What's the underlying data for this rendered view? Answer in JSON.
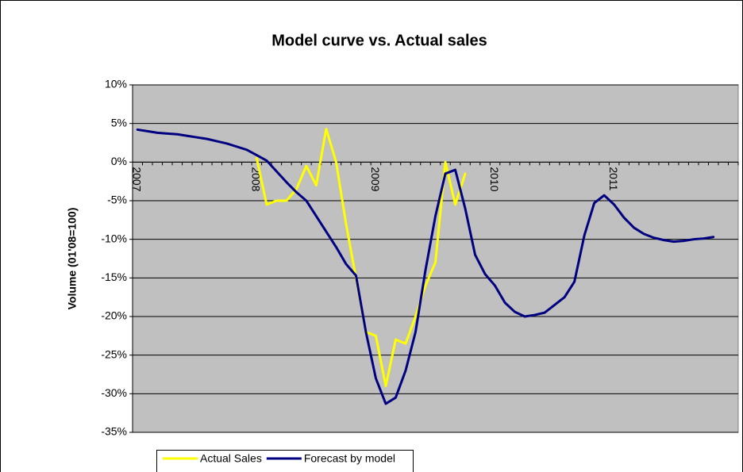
{
  "chart_data": {
    "type": "line",
    "title": "Model curve vs. Actual sales",
    "y_label": "Volume (01'08=100)",
    "categories": [
      "2007",
      null,
      null,
      null,
      null,
      null,
      null,
      null,
      null,
      null,
      null,
      null,
      "2008",
      null,
      null,
      null,
      null,
      null,
      null,
      null,
      null,
      null,
      null,
      null,
      "2009",
      null,
      null,
      null,
      null,
      null,
      null,
      null,
      null,
      null,
      null,
      null,
      "2010",
      null,
      null,
      null,
      null,
      null,
      null,
      null,
      null,
      null,
      null,
      null,
      "2011",
      null,
      null,
      null,
      null,
      null,
      null,
      null,
      null,
      null,
      null,
      null,
      null
    ],
    "series": [
      {
        "name": "Actual Sales",
        "color": "#ffff00",
        "values": [
          null,
          null,
          null,
          null,
          null,
          null,
          null,
          null,
          null,
          null,
          null,
          null,
          0.5,
          -5.5,
          -5,
          -5,
          -3.5,
          -0.5,
          -3,
          4.3,
          0,
          -8,
          -15,
          -22,
          -22.5,
          -29,
          -23,
          -23.5,
          -20,
          -16,
          -13,
          0,
          -5.5,
          -1.5,
          null,
          null,
          null,
          null,
          null,
          null,
          null,
          null,
          null,
          null,
          null,
          null,
          null,
          null,
          null,
          null,
          null,
          null,
          null,
          null,
          null,
          null,
          null,
          null,
          null,
          null,
          null
        ]
      },
      {
        "name": "Forecast by model",
        "color": "#000080",
        "values": [
          4.2,
          4.0,
          3.8,
          3.7,
          3.6,
          3.4,
          3.2,
          3.0,
          2.7,
          2.4,
          2.0,
          1.6,
          0.9,
          0.2,
          -1.2,
          -2.6,
          -3.9,
          -5.0,
          -7.0,
          -9.0,
          -11.0,
          -13.2,
          -14.7,
          -22,
          -28,
          -31.3,
          -30.5,
          -27,
          -22,
          -14,
          -7,
          -1.5,
          -1,
          -6,
          -12,
          -14.5,
          -16,
          -18.2,
          -19.4,
          -20,
          -19.8,
          -19.5,
          -18.5,
          -17.5,
          -15.5,
          -9.5,
          -5.3,
          -4.3,
          -5.5,
          -7.2,
          -8.5,
          -9.3,
          -9.8,
          -10.1,
          -10.3,
          -10.2,
          -10,
          -9.9,
          -9.7,
          null,
          null
        ]
      }
    ],
    "ylim": [
      -35,
      10
    ],
    "yticks": [
      {
        "value": -35,
        "label": "-35%"
      },
      {
        "value": -30,
        "label": "-30%"
      },
      {
        "value": -25,
        "label": "-25%"
      },
      {
        "value": -20,
        "label": "-20%"
      },
      {
        "value": -15,
        "label": "-15%"
      },
      {
        "value": -10,
        "label": "-10%"
      },
      {
        "value": -5,
        "label": "-5%"
      },
      {
        "value": 0,
        "label": "0%"
      },
      {
        "value": 5,
        "label": "5%"
      },
      {
        "value": 10,
        "label": "10%"
      }
    ],
    "grid": true,
    "legend": "bottom-left",
    "background": "#c0c0c0"
  }
}
